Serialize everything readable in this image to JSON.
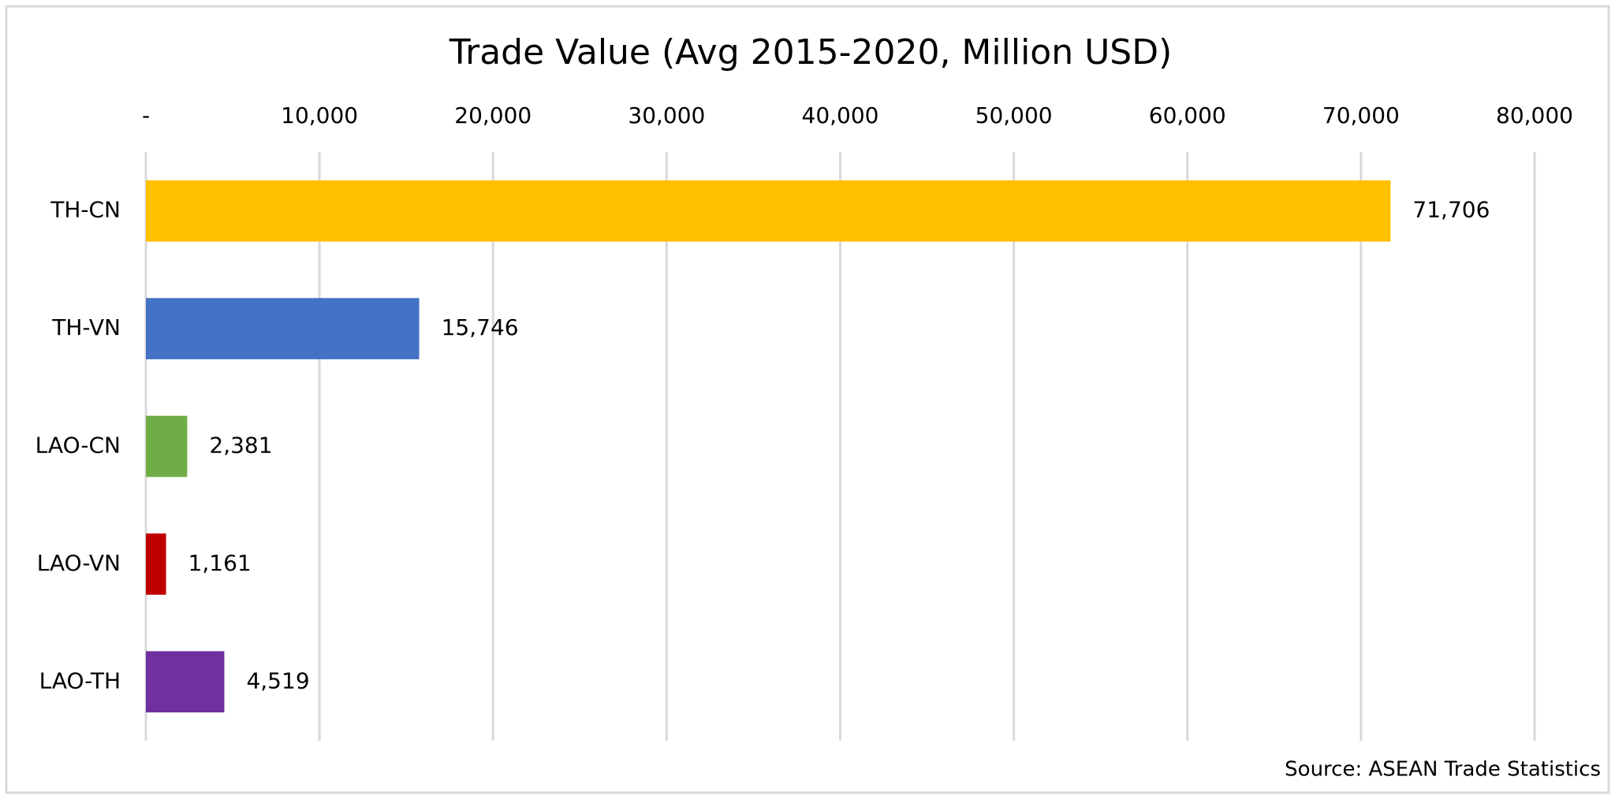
{
  "chart_data": {
    "type": "bar",
    "orientation": "horizontal",
    "title": "Trade Value (Avg 2015-2020, Million USD)",
    "categories": [
      "TH-CN",
      "TH-VN",
      "LAO-CN",
      "LAO-VN",
      "LAO-TH"
    ],
    "values": [
      71706,
      15746,
      2381,
      1161,
      4519
    ],
    "value_labels": [
      "71,706",
      "15,746",
      "2,381",
      "1,161",
      "4,519"
    ],
    "colors": [
      "#ffc000",
      "#4472c4",
      "#70ad47",
      "#c00000",
      "#7030a0"
    ],
    "xlim": [
      0,
      80000
    ],
    "xticks": [
      {
        "value": 0,
        "label": "-"
      },
      {
        "value": 10000,
        "label": "10,000"
      },
      {
        "value": 20000,
        "label": "20,000"
      },
      {
        "value": 30000,
        "label": "30,000"
      },
      {
        "value": 40000,
        "label": "40,000"
      },
      {
        "value": 50000,
        "label": "50,000"
      },
      {
        "value": 60000,
        "label": "60,000"
      },
      {
        "value": 70000,
        "label": "70,000"
      },
      {
        "value": 80000,
        "label": "80,000"
      }
    ],
    "xaxis_position": "top",
    "grid": true,
    "source": "Source: ASEAN Trade Statistics"
  }
}
